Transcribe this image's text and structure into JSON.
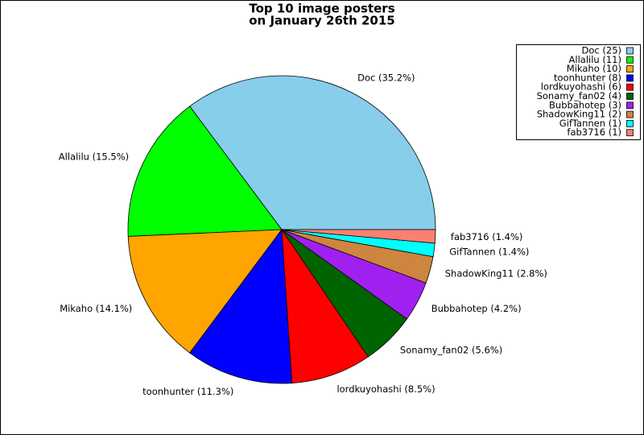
{
  "chart_data": {
    "type": "pie",
    "title": [
      "Top 10 image posters",
      "on January 26th 2015"
    ],
    "categories": [
      "Doc",
      "Allalilu",
      "Mikaho",
      "toonhunter",
      "lordkuyohashi",
      "Sonamy_fan02",
      "Bubbahotep",
      "ShadowKing11",
      "GifTannen",
      "fab3716"
    ],
    "values": [
      25,
      11,
      10,
      8,
      6,
      4,
      3,
      2,
      1,
      1
    ],
    "value_labels": [
      "Doc (35.2%)",
      "Allalilu (15.5%)",
      "Mikaho (14.1%)",
      "toonhunter (11.3%)",
      "lordkuyohashi (8.5%)",
      "Sonamy_fan02 (5.6%)",
      "Bubbahotep (4.2%)",
      "ShadowKing11 (2.8%)",
      "GifTannen (1.4%)",
      "fab3716 (1.4%)"
    ],
    "legend_labels": [
      "Doc (25)",
      "Allalilu (11)",
      "Mikaho (10)",
      "toonhunter (8)",
      "lordkuyohashi (6)",
      "Sonamy_fan02 (4)",
      "Bubbahotep (3)",
      "ShadowKing11 (2)",
      "GifTannen (1)",
      "fab3716 (1)"
    ],
    "colors": [
      "#87ceeb",
      "#00ff00",
      "#ffa500",
      "#0000ff",
      "#ff0000",
      "#006400",
      "#a020f0",
      "#cd853f",
      "#00ffff",
      "#fa8072"
    ],
    "legend": "upper right"
  }
}
